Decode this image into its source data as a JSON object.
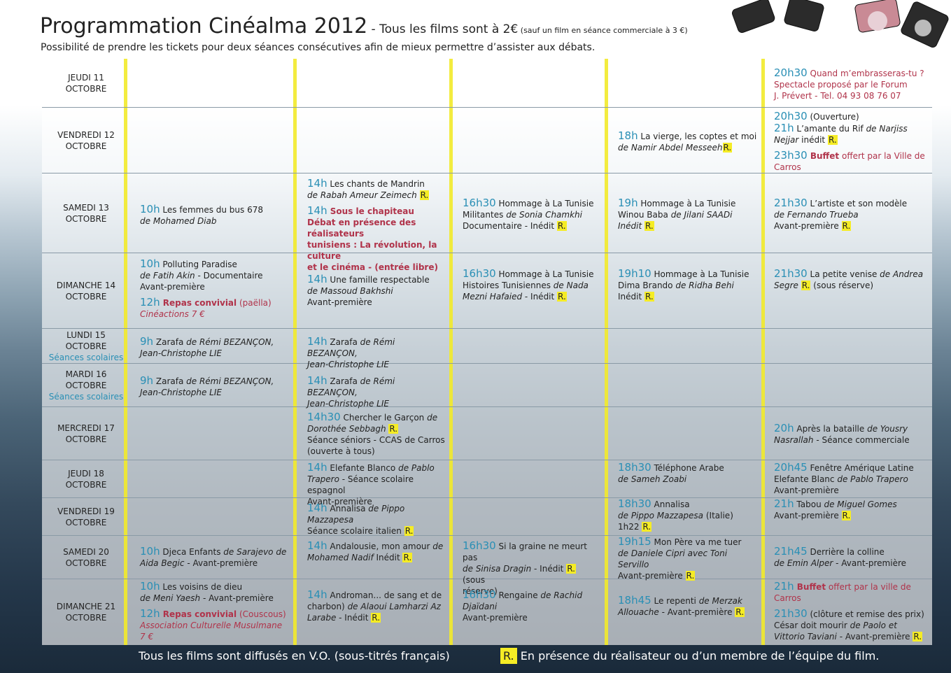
{
  "header": {
    "title": "Programmation Cinéalma 2012",
    "title_dash": " - Tous les films sont à 2€",
    "title_note": " (sauf un film en séance commerciale à 3 €)",
    "subtitle": "Possibilité de prendre les tickets pour deux séances consécutives afin de mieux permettre d’assister aux débats."
  },
  "days": {
    "d1": [
      "JEUDI 11",
      "OCTOBRE"
    ],
    "d2": [
      "VENDREDI 12",
      "OCTOBRE"
    ],
    "d3": [
      "SAMEDI 13",
      "OCTOBRE"
    ],
    "d4": [
      "DIMANCHE 14",
      "OCTOBRE"
    ],
    "d5": [
      "LUNDI 15",
      "OCTOBRE",
      "Séances scolaires"
    ],
    "d6": [
      "MARDI 16",
      "OCTOBRE",
      "Séances scolaires"
    ],
    "d7": [
      "MERCREDI 17",
      "OCTOBRE"
    ],
    "d8": [
      "JEUDI 18",
      "OCTOBRE"
    ],
    "d9": [
      "VENDREDI 19",
      "OCTOBRE"
    ],
    "d10": [
      "SAMEDI 20",
      "OCTOBRE"
    ],
    "d11": [
      "DIMANCHE 21",
      "OCTOBRE"
    ]
  },
  "cells": {
    "d1c5": {
      "time": "20h30",
      "a": " Quand m’embrasseras-tu ?",
      "b": "Spectacle proposé par le Forum",
      "c": "J. Prévert - Tel. 04 93 08 76 07"
    },
    "d2c4": {
      "time": "18h",
      "a": " La vierge, les coptes et moi",
      "b": "de Namir Abdel Messeeh",
      "r": "R."
    },
    "d2c5": {
      "time1": "20h30",
      "a": " (Ouverture)",
      "time2": "21h",
      "b": " L’amante du Rif ",
      "b2": "de Narjiss",
      "c": "Nejjar",
      "c2": " inédit ",
      "r": "R.",
      "time3": "23h30",
      "d": " Buffet",
      "d2": " offert par la Ville de",
      "e": "Carros"
    },
    "d3c1": {
      "time": "10h",
      "a": " Les femmes du bus 678",
      "b": "de Mohamed Diab"
    },
    "d3c2": {
      "time": "14h",
      "a": " Les chants de Mandrin",
      "b": "de Rabah Ameur Zeimech ",
      "r": "R.",
      "time2": "14h",
      "c": " Sous le chapiteau",
      "d": "Débat en présence des réalisateurs",
      "e": "tunisiens : La révolution, la culture",
      "f": "et le cinéma - (entrée libre)"
    },
    "d3c3": {
      "time": "16h30",
      "a": " Hommage à La Tunisie",
      "b": "Militantes ",
      "b2": "de Sonia Chamkhi",
      "c": "Documentaire - Inédit ",
      "r": "R."
    },
    "d3c4": {
      "time": "19h",
      "a": " Hommage à La Tunisie",
      "b": "Winou Baba ",
      "b2": "de Jilani SAADi",
      "c": "Inédit ",
      "r": "R."
    },
    "d3c5": {
      "time": "21h30",
      "a": " L’artiste et son modèle",
      "b": "de Fernando Trueba",
      "c": "Avant-première ",
      "r": "R."
    },
    "d4c1": {
      "time": "10h",
      "a": " Polluting Paradise",
      "b": "de Fatih Akin",
      "b2": " - Documentaire",
      "c": "Avant-première",
      "time2": "12h",
      "d": " Repas convivial",
      "d2": " (paëlla)",
      "e": "Cinéactions 7 €"
    },
    "d4c2": {
      "time": "14h",
      "a": " Une famille respectable",
      "b": "de Massoud Bakhshi",
      "c": "Avant-première"
    },
    "d4c3": {
      "time": "16h30",
      "a": " Hommage à La Tunisie",
      "b": "Histoires Tunisiennes ",
      "b2": "de Nada",
      "c": "Mezni Hafaied",
      "c2": " - Inédit ",
      "r": "R."
    },
    "d4c4": {
      "time": "19h10",
      "a": " Hommage à La Tunisie",
      "b": "Dima Brando ",
      "b2": "de Ridha Behi",
      "c": "Inédit ",
      "r": "R."
    },
    "d4c5": {
      "time": "21h30",
      "a": " La petite venise ",
      "a2": "de Andrea",
      "b": "Segre ",
      "r": "R.",
      "b2": " (sous réserve)"
    },
    "d5c1": {
      "time": "9h",
      "a": " Zarafa ",
      "a2": "de Rémi BEZANÇON,",
      "b": "Jean-Christophe LIE"
    },
    "d5c2": {
      "time": "14h",
      "a": " Zarafa ",
      "a2": "de Rémi BEZANÇON,",
      "b": "Jean-Christophe LIE"
    },
    "d6c1": {
      "time": "9h",
      "a": " Zarafa ",
      "a2": "de Rémi BEZANÇON,",
      "b": "Jean-Christophe LIE"
    },
    "d6c2": {
      "time": "14h",
      "a": " Zarafa ",
      "a2": "de Rémi BEZANÇON,",
      "b": "Jean-Christophe LIE"
    },
    "d7c2": {
      "time": "14h30",
      "a": " Chercher le Garçon ",
      "a2": "de",
      "b": "Dorothée Sebbagh ",
      "r": "R.",
      "c": "Séance séniors - CCAS de Carros",
      "d": "(ouverte à tous)"
    },
    "d7c5": {
      "time": "20h",
      "a": " Après la bataille ",
      "a2": "de Yousry",
      "b": "Nasrallah",
      "b2": " - Séance commerciale"
    },
    "d8c2": {
      "time": "14h",
      "a": " Elefante Blanco ",
      "a2": "de Pablo",
      "b": "Trapero",
      "b2": " - Séance scolaire espagnol",
      "c": "Avant-première"
    },
    "d8c4": {
      "time": "18h30",
      "a": "  Téléphone Arabe",
      "b": "de Sameh Zoabi"
    },
    "d8c5": {
      "time": "20h45",
      "a": " Fenêtre Amérique Latine",
      "b": "Elefante Blanc ",
      "b2": "de Pablo Trapero",
      "c": "Avant-première"
    },
    "d9c2": {
      "time": "14h",
      "a": " Annalisa ",
      "a2": "de Pippo Mazzapesa",
      "b": "Séance scolaire italien ",
      "r": "R."
    },
    "d9c4": {
      "time": "18h30",
      "a": " Annalisa",
      "b": "de Pippo Mazzapesa",
      "b2": " (Italie)",
      "c": "1h22  ",
      "r": "R."
    },
    "d9c5": {
      "time": "21h",
      "a": " Tabou ",
      "a2": "de Miguel Gomes",
      "b": "Avant-première ",
      "r": "R."
    },
    "d10c1": {
      "time": "10h",
      "a": " Djeca Enfants ",
      "a2": "de Sarajevo de",
      "b": "Aida Begic",
      "b2": " - Avant-première"
    },
    "d10c2": {
      "time": "14h",
      "a": " Andalousie, mon amour ",
      "a2": "de",
      "b": "Mohamed Nadif",
      "b2": " Inédit ",
      "r": "R."
    },
    "d10c3": {
      "time": "16h30",
      "a": " Si la graine ne meurt pas",
      "b": "de Sinisa Dragin",
      "b2": " - Inédit ",
      "r": "R.",
      "b3": " (sous",
      "c": "réserve)"
    },
    "d10c4": {
      "time": "19h15",
      "a": " Mon Père va me tuer",
      "b": "de Daniele Cipri avec Toni Servillo",
      "c": "Avant-première ",
      "r": "R."
    },
    "d10c5": {
      "time": "21h45",
      "a": " Derrière la colline",
      "b": "de Emin Alper",
      "b2": " - Avant-première"
    },
    "d11c1": {
      "time": "10h",
      "a": " Les voisins de dieu",
      "b": "de Meni Yaesh",
      "b2": " - Avant-première",
      "time2": "12h",
      "c": " Repas convivial",
      "c2": " (Couscous)",
      "d": "Association Culturelle Musulmane 7 €"
    },
    "d11c2": {
      "time": "14h",
      "a": " Androman... de sang et de",
      "b": "charbon) ",
      "b2": "de Alaoui  Lamharzi Az",
      "c": "Larabe",
      "c2": " - Inédit ",
      "r": "R."
    },
    "d11c3": {
      "time": "16h30",
      "a": " Rengaine ",
      "a2": "de Rachid Djaïdani",
      "b": "Avant-première"
    },
    "d11c4": {
      "time": "18h45",
      "a": " Le repenti ",
      "a2": "de Merzak",
      "b": "Allouache",
      "b2": " - Avant-première ",
      "r": "R."
    },
    "d11c5": {
      "time": "21h",
      "a": " Buffet",
      "a2": " offert par la ville de",
      "b": "Carros",
      "time2": "21h30",
      "c": " (clôture et remise des prix)",
      "d": "César doit mourir ",
      "d2": "de Paolo et",
      "e": "Vittorio Taviani",
      "e2": " - Avant-première ",
      "r": "R."
    }
  },
  "footer": {
    "left": "Tous les films sont diffusés en V.O. (sous-titrés français)",
    "r_badge": "R.",
    "right": " En présence du réalisateur ou d’un membre de l’équipe du film."
  },
  "colors": {
    "accent_yellow": "#f2ea2a",
    "time_blue": "#2a8fb5",
    "red": "#b0334a"
  }
}
